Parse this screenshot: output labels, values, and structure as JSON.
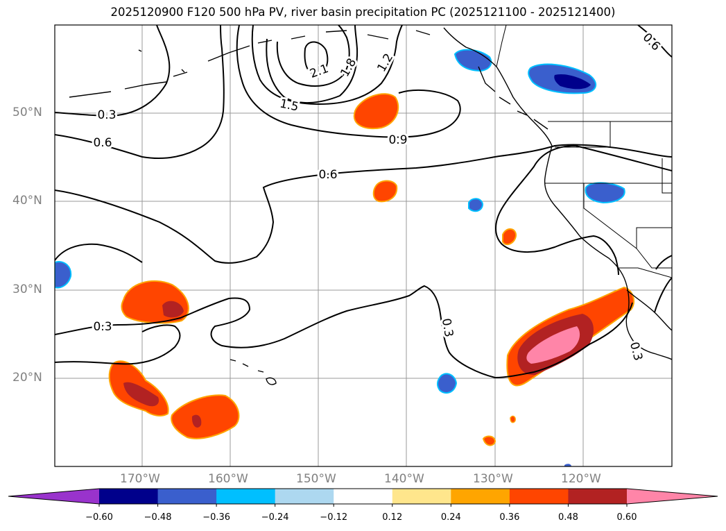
{
  "title": "2025120900 F120 500 hPa PV, river basin precipitation PC (2025121100 - 2025121400)",
  "lat_labels": [
    "50°N",
    "40°N",
    "30°N",
    "20°N"
  ],
  "lon_labels": [
    "170°W",
    "160°W",
    "150°W",
    "140°W",
    "130°W",
    "120°W"
  ],
  "pv_contour_labels": [
    "0.3",
    "0.6",
    "0.9",
    "1.2",
    "1.5",
    "1.8",
    "2.1",
    "0.6",
    "0.6",
    "0.3",
    "0.3",
    "0.3"
  ],
  "colorbar": {
    "ticks": [
      "−0.60",
      "−0.48",
      "−0.36",
      "−0.24",
      "−0.12",
      "0.12",
      "0.24",
      "0.36",
      "0.48",
      "0.60"
    ],
    "colors": [
      "#9933cc",
      "#00008b",
      "#3a5fcd",
      "#00bfff",
      "#add8f0",
      "#ffffff",
      "#ffe68c",
      "#ffa500",
      "#ff4500",
      "#b22222",
      "#ff85a8"
    ]
  }
}
